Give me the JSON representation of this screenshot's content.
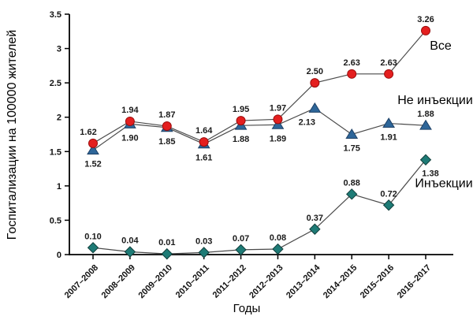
{
  "chart_data": {
    "type": "line",
    "title": "",
    "xlabel": "Годы",
    "ylabel": "Госпитализации на 100000 жителей",
    "ylim": [
      0,
      3.5
    ],
    "yticks": {
      "values": [
        0,
        0.5,
        1,
        1.5,
        2,
        2.5,
        3,
        3.5
      ],
      "labels": [
        "0",
        "0.5",
        "1",
        "1.5",
        "2",
        "2.5",
        "3",
        "3.5"
      ]
    },
    "categories": [
      "2007–2008",
      "2008–2009",
      "2009–2010",
      "2010–2011",
      "2011–2012",
      "2012–2013",
      "2013–2014",
      "2014–2015",
      "2015–2016",
      "2016–2017"
    ],
    "series": [
      {
        "name": "Все",
        "marker": "circle",
        "color": "#e41f1f",
        "marker_stroke": "#9c0d0d",
        "values": [
          1.62,
          1.94,
          1.87,
          1.64,
          1.95,
          1.97,
          2.5,
          2.63,
          2.63,
          3.26
        ],
        "labels": [
          "1.62",
          "1.94",
          "1.87",
          "1.64",
          "1.95",
          "1.97",
          "2.50",
          "2.63",
          "2.63",
          "3.26"
        ],
        "label_side": [
          "above",
          "above",
          "above",
          "above",
          "above",
          "above",
          "above",
          "above",
          "above",
          "above"
        ],
        "label_dx": [
          -6,
          0,
          0,
          0,
          0,
          0,
          0,
          0,
          0,
          0
        ],
        "name_offset": [
          19,
          24
        ]
      },
      {
        "name": "Не инъекции",
        "marker": "triangle",
        "color": "#2e6699",
        "marker_stroke": "#1d4066",
        "values": [
          1.52,
          1.9,
          1.85,
          1.61,
          1.88,
          1.89,
          2.13,
          1.75,
          1.91,
          1.88
        ],
        "labels": [
          "1.52",
          "1.90",
          "1.85",
          "1.61",
          "1.88",
          "1.89",
          "2.13",
          "1.75",
          "1.91",
          "1.88"
        ],
        "label_side": [
          "below",
          "below",
          "below",
          "below",
          "below",
          "below",
          "below",
          "below",
          "below",
          "above"
        ],
        "label_dx": [
          0,
          0,
          0,
          0,
          0,
          0,
          -10,
          0,
          0,
          0
        ],
        "name_offset": [
          12,
          -27
        ]
      },
      {
        "name": "Инъекции",
        "marker": "diamond",
        "color": "#1e7b76",
        "marker_stroke": "#123f3c",
        "values": [
          0.1,
          0.04,
          0.01,
          0.03,
          0.07,
          0.08,
          0.37,
          0.88,
          0.72,
          1.38
        ],
        "labels": [
          "0.10",
          "0.04",
          "0.01",
          "0.03",
          "0.07",
          "0.08",
          "0.37",
          "0.88",
          "0.72",
          "1.38"
        ],
        "label_side": [
          "above",
          "above",
          "above",
          "above",
          "above",
          "above",
          "above",
          "above",
          "above",
          "below"
        ],
        "label_dx": [
          0,
          0,
          0,
          0,
          0,
          0,
          0,
          0,
          0,
          6
        ],
        "name_offset": [
          23,
          35
        ]
      }
    ],
    "line_color": "#4a4a4a",
    "axis_color": "#000000",
    "background": "#ffffff",
    "grid": "off",
    "legend_position": "inline-right-of-last-point"
  }
}
